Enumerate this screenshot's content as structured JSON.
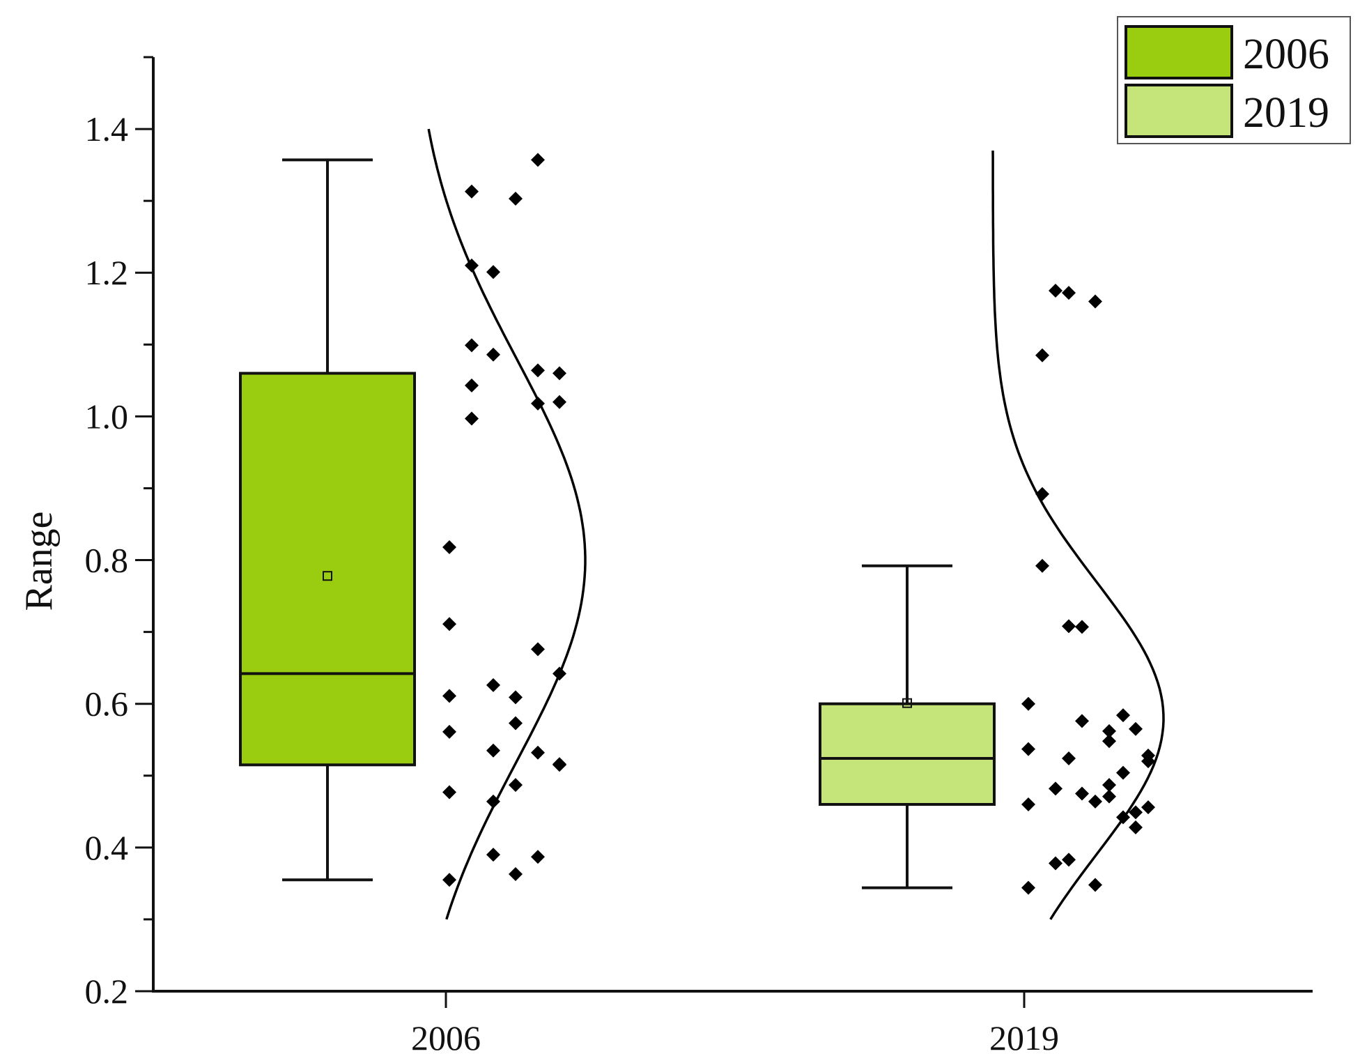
{
  "chart_data": {
    "type": "box",
    "title": "",
    "xlabel": "",
    "ylabel": "Range",
    "ylim": [
      0.2,
      1.5
    ],
    "yticks": [
      0.2,
      0.4,
      0.6,
      0.8,
      1.0,
      1.2,
      1.4
    ],
    "ytick_labels": [
      "0.2",
      "0.4",
      "0.6",
      "0.8",
      "1.0",
      "1.2",
      "1.4"
    ],
    "categories": [
      "2006",
      "2019"
    ],
    "legend": {
      "position": "top-right",
      "entries": [
        {
          "label": "2006",
          "color": "#9acd0f"
        },
        {
          "label": "2019",
          "color": "#c5e57a"
        }
      ]
    },
    "grid": false,
    "series": [
      {
        "name": "2006",
        "color": "#9acd0f",
        "box": {
          "min": 0.355,
          "q1": 0.515,
          "median": 0.642,
          "q3": 1.06,
          "max": 1.357,
          "mean": 0.778
        },
        "distribution_curve": {
          "mean": 0.8,
          "sd": 0.28,
          "y_from": 0.3,
          "y_to": 1.4
        },
        "points": [
          0.355,
          0.477,
          0.561,
          0.611,
          0.711,
          0.818,
          0.997,
          1.043,
          1.099,
          1.21,
          1.313,
          0.39,
          0.464,
          0.535,
          0.626,
          1.086,
          1.201,
          1.303,
          0.363,
          0.487,
          0.573,
          0.609,
          1.018,
          1.357,
          0.387,
          0.532,
          0.676,
          1.064,
          0.515,
          0.642,
          1.06,
          0.516,
          1.02
        ]
      },
      {
        "name": "2019",
        "color": "#c5e57a",
        "box": {
          "min": 0.344,
          "q1": 0.46,
          "median": 0.524,
          "q3": 0.6,
          "max": 0.792,
          "mean": 0.601
        },
        "distribution_curve": {
          "mean": 0.58,
          "sd": 0.19,
          "y_from": 0.3,
          "y_to": 1.37
        },
        "points": [
          0.344,
          0.46,
          0.537,
          0.6,
          0.792,
          0.892,
          1.085,
          1.175,
          0.378,
          0.482,
          0.524,
          0.708,
          1.172,
          0.383,
          0.475,
          0.576,
          0.707,
          1.16,
          0.348,
          0.464,
          0.562,
          0.487,
          0.548,
          0.471,
          0.584,
          0.442,
          0.504,
          0.428,
          0.565,
          0.449,
          0.528,
          0.456,
          0.52
        ]
      }
    ]
  }
}
